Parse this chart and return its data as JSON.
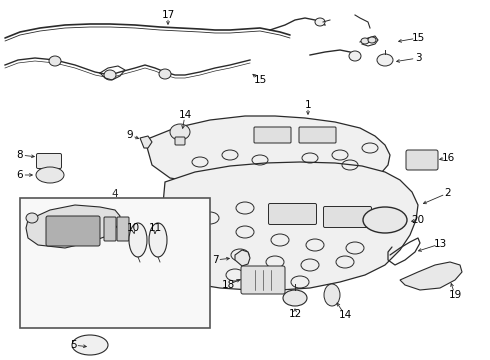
{
  "background_color": "#ffffff",
  "line_color": "#2a2a2a",
  "text_color": "#000000",
  "fig_width": 4.9,
  "fig_height": 3.6,
  "dpi": 100,
  "panel_fill": "#f0f0f0",
  "panel_edge": "#2a2a2a",
  "wire_color": "#2a2a2a",
  "detail_color": "#444444",
  "inset_fill": "#f8f8f8",
  "inset_edge": "#555555",
  "console_fill": "#e0e0e0",
  "console_edge": "#2a2a2a"
}
